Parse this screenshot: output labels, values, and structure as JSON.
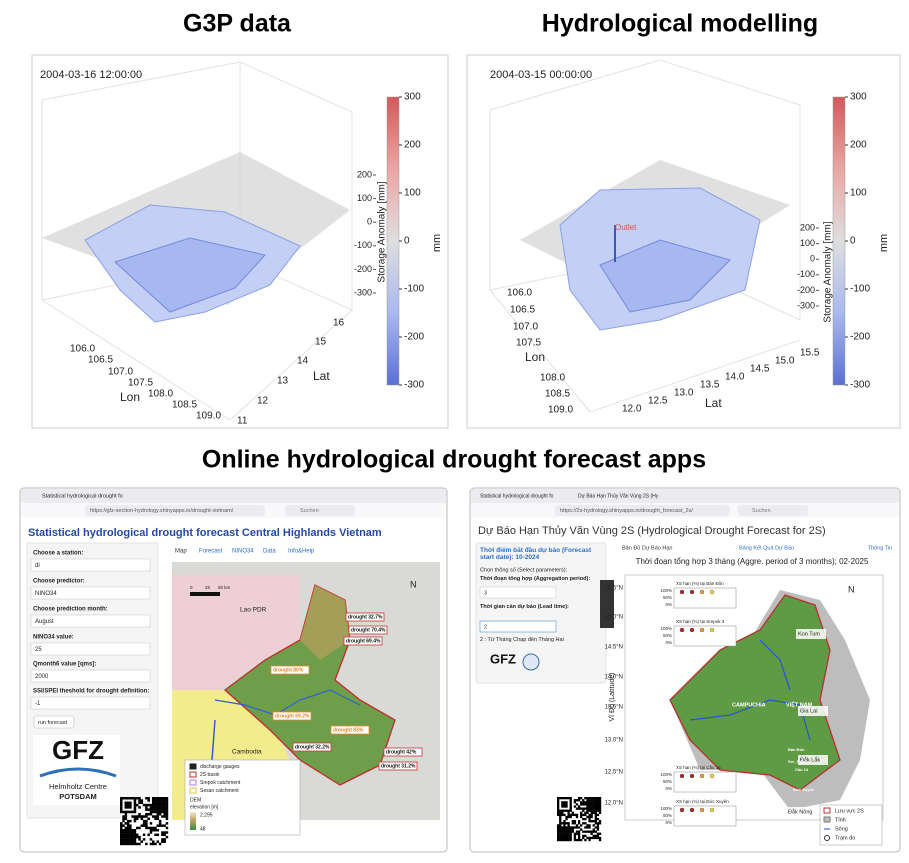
{
  "panels": [
    {
      "title": "G3P data",
      "timestamp": "2004-03-16 12:00:00",
      "zlabel": "Storage Anomaly [mm]",
      "unit": "mm",
      "clim": [
        -300,
        300
      ],
      "cticks": [
        300,
        200,
        100,
        0,
        -100,
        -200,
        -300
      ],
      "zticks": [
        200,
        100,
        0,
        -100,
        -200,
        -300
      ],
      "xlabel": "Lon",
      "xticks": [
        {
          "value": 106,
          "label": "106.0"
        },
        106.5,
        {
          "value": 107,
          "label": "107.0"
        },
        107.5,
        {
          "value": 108,
          "label": "108.0"
        },
        108.5,
        {
          "value": 109,
          "label": "109.0"
        }
      ],
      "ylabel": "Lat",
      "yticks": [
        11,
        12,
        13,
        14,
        15,
        16
      ]
    },
    {
      "title": "Hydrological modelling",
      "timestamp": "2004-03-15 00:00:00",
      "zlabel": "Storage Anomaly [mm]",
      "unit": "mm",
      "clim": [
        -300,
        300
      ],
      "cticks": [
        300,
        200,
        100,
        0,
        -100,
        -200,
        -300
      ],
      "zticks": [
        200,
        100,
        0,
        -100,
        -200,
        -300
      ],
      "xlabel": "Lon",
      "xticks": [
        {
          "value": 106,
          "label": "106.0"
        },
        106.5,
        {
          "value": 107,
          "label": "107.0"
        },
        107.5,
        {
          "value": 108,
          "label": "108.0"
        },
        108.5,
        {
          "value": 109,
          "label": "109.0"
        }
      ],
      "ylabel": "Lat",
      "yticks": [
        {
          "value": 12,
          "label": "12.0"
        },
        12.5,
        {
          "value": 13,
          "label": "13.0"
        },
        13.5,
        {
          "value": 14,
          "label": "14.0"
        },
        14.5,
        {
          "value": 15,
          "label": "15.0"
        },
        15.5
      ],
      "annotation": "Outlet"
    }
  ],
  "apps_title": "Online hydrological drought forecast apps",
  "apps": [
    {
      "browser": {
        "tabs": [
          "Statistical hydrological drought fo"
        ],
        "url": "https://gfz-section-hydrology.shinyapps.io/drought-vietnam/",
        "search": "Suchen"
      },
      "heading": "Statistical hydrological drought forecast Central Highlands Vietnam",
      "inputs": [
        {
          "label": "Choose a station:",
          "value": "dl"
        },
        {
          "label": "Choose predictor:",
          "value": "NINO34"
        },
        {
          "label": "Choose prediction month:",
          "value": "August"
        },
        {
          "label": "NINO34 value:",
          "value": 25
        },
        {
          "label": "Qmonth6 value [qms]:",
          "value": 2000
        },
        {
          "label": "SSI/SPEI theshold for drought definition:",
          "value": -1
        }
      ],
      "button": "run forecast",
      "logo": {
        "name": "GFZ",
        "line1": "Helmholtz Centre",
        "line2": "POTSDAM"
      },
      "tabs": [
        "Map",
        "Forecast",
        "NINO34",
        "Data",
        "Info&Help"
      ],
      "map": {
        "countries": [
          "Lao PDR",
          "Cambodia"
        ],
        "scale": [
          0,
          25,
          "50 km"
        ],
        "north": "N",
        "drought_labels": [
          "drought 32.7%",
          "drought 70.4%",
          "drought 69.4%",
          "drought 80%",
          "drought 69.2%",
          "drought 83%",
          "drought 32.2%",
          "drought 42%",
          "drought 31.2%"
        ],
        "legend": [
          "discharge gauges",
          "2S basin",
          "Srepok catchment",
          "Sesan catchment"
        ],
        "dem": "DEM",
        "dem_unit": "elevation [m]",
        "dem_max": {
          "value": 2295,
          "label": "2,295"
        },
        "dem_min": 48
      }
    },
    {
      "browser": {
        "tabs": [
          "Statistical hydrological drought fo",
          "Dự Báo Hạn Thủy Văn Vùng 2S (Hy"
        ],
        "url": "https://2s-hydrology.shinyapps.io/drought_forecast_2s/",
        "search": "Suchen"
      },
      "heading": "Dự Báo Hạn Thủy Văn Vùng 2S (Hydrological Drought Forecast for 2S)",
      "start_date": "Thời điểm bắt đầu dự báo (Forecast start date): 10-2024",
      "params": "Chọn thông số (Select parameters):",
      "inputs": [
        {
          "label": "Thời đoạn tổng hợp (Aggregation period):",
          "value": 3
        },
        {
          "label": "Thời gian cần dự báo (Lead time):",
          "value": 2
        }
      ],
      "lead_note": "2 : Từ Tháng Chạp đến Tháng Hai",
      "logo": "GFZ",
      "tabs": [
        "Bản Đồ Dự Báo Hạn",
        "Bảng Kết Quả Dự Báo",
        "Thông Tin",
        "Info"
      ],
      "map": {
        "title": "Thời đoạn tổng hợp 3 tháng  (Aggre. period of 3 months); 02-2025",
        "ylabel": "Vĩ Độ (Latitude)",
        "yticks": [
          "15.5°N",
          "15.0°N",
          "14.5°N",
          "14.0°N",
          "13.5°N",
          "13.0°N",
          "12.5°N",
          "12.0°N"
        ],
        "north": "N",
        "insets": [
          {
            "title": "XS hạn (%) tại Bản Đôn",
            "ticks": [
              "100%",
              "50%",
              "0%"
            ]
          },
          {
            "title": "XS hạn (%) tại Srepok 3",
            "ticks": [
              "100%",
              "50%",
              "0%"
            ]
          },
          {
            "title": "XS hạn (%) tại Cầu 14",
            "ticks": [
              "100%",
              "50%",
              "0%"
            ]
          },
          {
            "title": "XS hạn (%) tại Đức Xuyên",
            "ticks": [
              "100%",
              "50%",
              "0%"
            ]
          }
        ],
        "provinces": [
          "Kon Tum",
          "Gia Lai",
          "Đắk Lắk",
          "Đắk Nông"
        ],
        "countries": [
          "CAMPUCHIA",
          "VIỆT NAM"
        ],
        "stations": [
          "Bản Đôn",
          "Sre_Pok 3",
          "Cầu 14",
          "Đức Xuyên"
        ],
        "legend": [
          "Lưu vực 2S",
          "Tỉnh",
          "Sông",
          "Trạm đo"
        ]
      }
    }
  ]
}
